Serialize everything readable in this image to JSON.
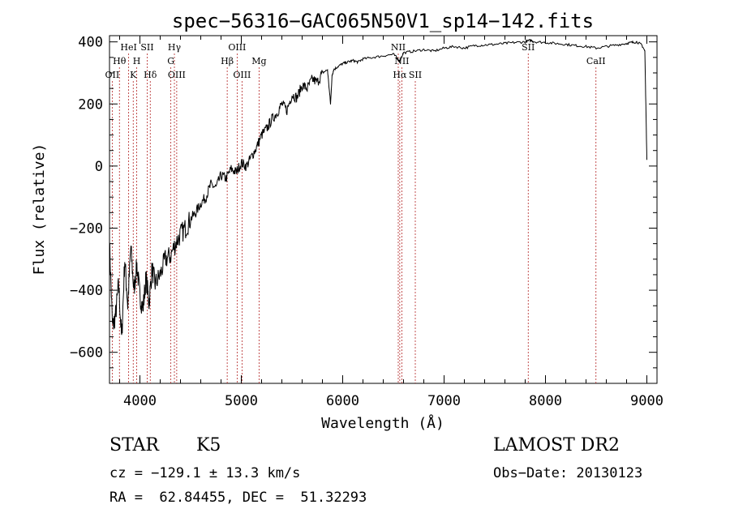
{
  "chart_data": {
    "type": "line",
    "title": "spec−56316−GAC065N50V1_sp14−142.fits",
    "xlabel": "Wavelength (Å)",
    "ylabel": "Flux (relative)",
    "xlim": [
      3700,
      9100
    ],
    "ylim": [
      -700,
      420
    ],
    "xticks": [
      4000,
      5000,
      6000,
      7000,
      8000,
      9000
    ],
    "yticks": [
      -600,
      -400,
      -200,
      0,
      200,
      400
    ],
    "ytick_labels": [
      "−600",
      "−400",
      "−200",
      "0",
      "200",
      "400"
    ],
    "grid": false,
    "spectrum": {
      "x": [
        3700,
        3730,
        3760,
        3790,
        3820,
        3850,
        3880,
        3910,
        3940,
        3970,
        4000,
        4030,
        4060,
        4090,
        4120,
        4150,
        4200,
        4250,
        4300,
        4350,
        4400,
        4450,
        4500,
        4550,
        4600,
        4650,
        4700,
        4750,
        4800,
        4850,
        4900,
        4950,
        5000,
        5050,
        5100,
        5150,
        5200,
        5250,
        5300,
        5350,
        5400,
        5450,
        5500,
        5550,
        5600,
        5650,
        5700,
        5750,
        5800,
        5850,
        5880,
        5895,
        5910,
        5950,
        6000,
        6050,
        6100,
        6150,
        6200,
        6300,
        6400,
        6500,
        6563,
        6600,
        6700,
        6800,
        6900,
        7000,
        7100,
        7200,
        7300,
        7400,
        7500,
        7600,
        7700,
        7800,
        7850,
        7900,
        8000,
        8100,
        8200,
        8300,
        8400,
        8500,
        8600,
        8700,
        8800,
        8850,
        8900,
        8950,
        8980,
        9000
      ],
      "y": [
        -250,
        -520,
        -480,
        -380,
        -560,
        -300,
        -450,
        -260,
        -400,
        -320,
        -420,
        -460,
        -360,
        -440,
        -330,
        -380,
        -350,
        -300,
        -290,
        -250,
        -220,
        -200,
        -170,
        -150,
        -120,
        -100,
        -60,
        -70,
        -30,
        -40,
        -10,
        -20,
        10,
        0,
        30,
        60,
        100,
        120,
        150,
        170,
        200,
        180,
        230,
        220,
        260,
        250,
        280,
        270,
        300,
        310,
        200,
        290,
        310,
        320,
        330,
        335,
        340,
        335,
        345,
        350,
        355,
        360,
        340,
        365,
        370,
        375,
        370,
        380,
        385,
        380,
        388,
        390,
        392,
        395,
        398,
        400,
        405,
        400,
        398,
        395,
        392,
        388,
        385,
        380,
        385,
        390,
        395,
        398,
        400,
        390,
        370,
        20
      ]
    },
    "lines": [
      {
        "label": "OII",
        "wavelength": 3727,
        "row": 3
      },
      {
        "label": "Hθ",
        "wavelength": 3798,
        "row": 2
      },
      {
        "label": "HeI",
        "wavelength": 3889,
        "row": 1
      },
      {
        "label": "K",
        "wavelength": 3934,
        "row": 3
      },
      {
        "label": "H",
        "wavelength": 3968,
        "row": 2
      },
      {
        "label": "SII",
        "wavelength": 4072,
        "row": 1
      },
      {
        "label": "Hδ",
        "wavelength": 4102,
        "row": 3
      },
      {
        "label": "Hγ",
        "wavelength": 4340,
        "row": 1
      },
      {
        "label": "G",
        "wavelength": 4305,
        "row": 2
      },
      {
        "label": "OIII",
        "wavelength": 4363,
        "row": 3
      },
      {
        "label": "Hβ",
        "wavelength": 4861,
        "row": 2
      },
      {
        "label": "OIII",
        "wavelength": 4959,
        "row": 1
      },
      {
        "label": "OIII",
        "wavelength": 5007,
        "row": 3
      },
      {
        "label": "Mg",
        "wavelength": 5175,
        "row": 2
      },
      {
        "label": "NII",
        "wavelength": 6548,
        "row": 1
      },
      {
        "label": "NII",
        "wavelength": 6583,
        "row": 2
      },
      {
        "label": "Hα",
        "wavelength": 6563,
        "row": 3
      },
      {
        "label": "SII",
        "wavelength": 6716,
        "row": 3
      },
      {
        "label": "SII",
        "wavelength": 7830,
        "row": 1
      },
      {
        "label": "CaII",
        "wavelength": 8498,
        "row": 2
      }
    ]
  },
  "info": {
    "class_label": "STAR",
    "subclass": "K5",
    "survey": "LAMOST DR2",
    "cz": "cz = −129.1 ± 13.3 km/s",
    "obs_date": "Obs−Date: 20130123",
    "coords": "RA =  62.84455, DEC =  51.32293"
  }
}
